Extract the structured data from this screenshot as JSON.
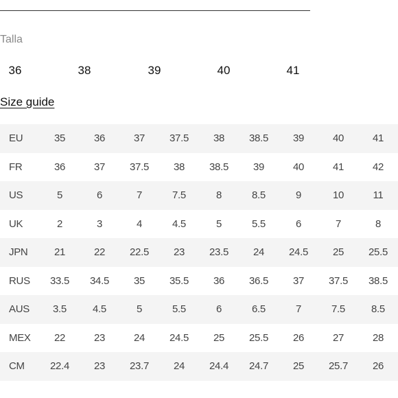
{
  "size_selector": {
    "label": "Talla",
    "options": [
      "36",
      "38",
      "39",
      "40",
      "41"
    ]
  },
  "size_guide": {
    "link_label": "Size guide"
  },
  "conversion_table": {
    "rows": [
      {
        "system": "EU",
        "values": [
          "35",
          "36",
          "37",
          "37.5",
          "38",
          "38.5",
          "39",
          "40",
          "41"
        ]
      },
      {
        "system": "FR",
        "values": [
          "36",
          "37",
          "37.5",
          "38",
          "38.5",
          "39",
          "40",
          "41",
          "42"
        ]
      },
      {
        "system": "US",
        "values": [
          "5",
          "6",
          "7",
          "7.5",
          "8",
          "8.5",
          "9",
          "10",
          "11"
        ]
      },
      {
        "system": "UK",
        "values": [
          "2",
          "3",
          "4",
          "4.5",
          "5",
          "5.5",
          "6",
          "7",
          "8"
        ]
      },
      {
        "system": "JPN",
        "values": [
          "21",
          "22",
          "22.5",
          "23",
          "23.5",
          "24",
          "24.5",
          "25",
          "25.5"
        ]
      },
      {
        "system": "RUS",
        "values": [
          "33.5",
          "34.5",
          "35",
          "35.5",
          "36",
          "36.5",
          "37",
          "37.5",
          "38.5"
        ]
      },
      {
        "system": "AUS",
        "values": [
          "3.5",
          "4.5",
          "5",
          "5.5",
          "6",
          "6.5",
          "7",
          "7.5",
          "8.5"
        ]
      },
      {
        "system": "MEX",
        "values": [
          "22",
          "23",
          "24",
          "24.5",
          "25",
          "25.5",
          "26",
          "27",
          "28"
        ]
      },
      {
        "system": "CM",
        "values": [
          "22.4",
          "23",
          "23.7",
          "24",
          "24.4",
          "24.7",
          "25",
          "25.7",
          "26"
        ]
      }
    ]
  }
}
